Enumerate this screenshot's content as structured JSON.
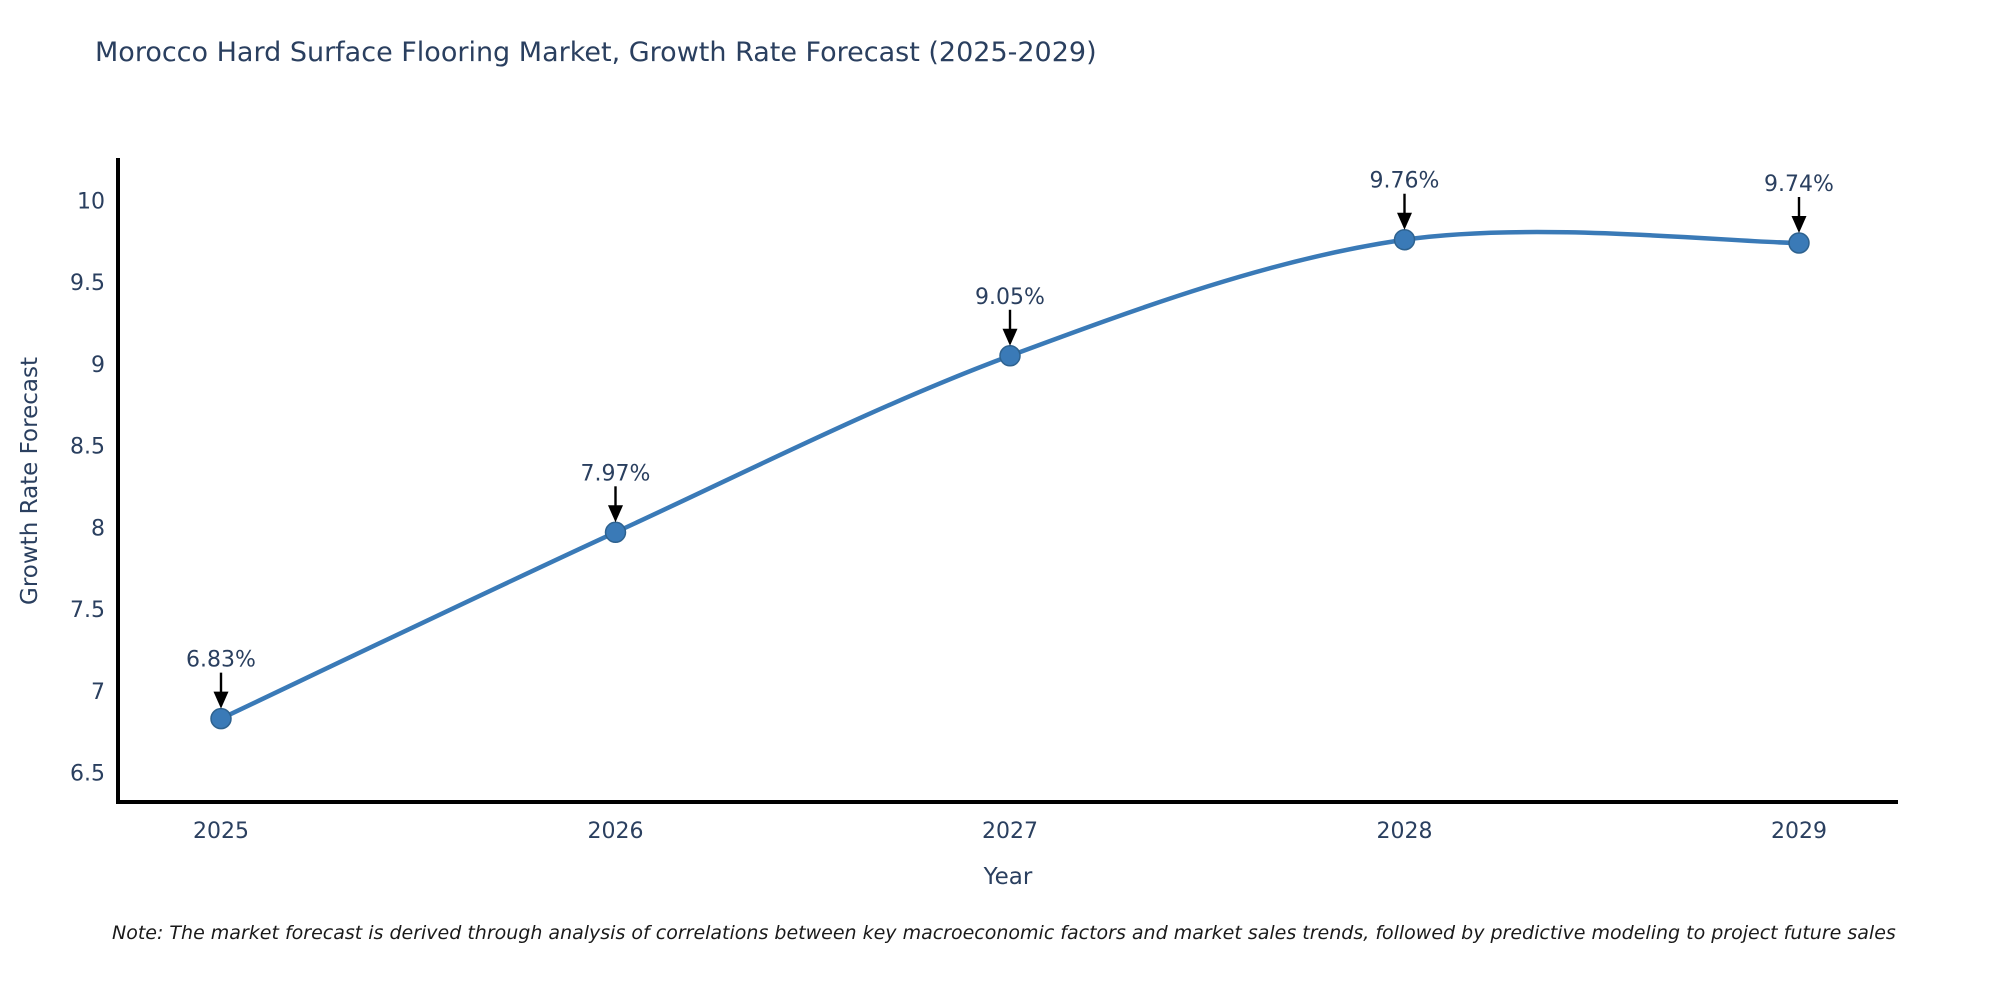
{
  "title": "Morocco Hard Surface Flooring Market, Growth Rate Forecast (2025-2029)",
  "note": "Note: The market forecast is derived through analysis of correlations between key macroeconomic factors and market sales trends, followed by predictive modeling to project future sales",
  "chart_data": {
    "type": "line",
    "title": "Morocco Hard Surface Flooring Market, Growth Rate Forecast (2025-2029)",
    "xlabel": "Year",
    "ylabel": "Growth Rate Forecast",
    "x": [
      2025,
      2026,
      2027,
      2028,
      2029
    ],
    "values": [
      6.83,
      7.97,
      9.05,
      9.76,
      9.74
    ],
    "point_labels": [
      "6.83%",
      "7.97%",
      "9.05%",
      "9.76%",
      "9.74%"
    ],
    "xticks": [
      "2025",
      "2026",
      "2027",
      "2028",
      "2029"
    ],
    "yticks": [
      "6.5",
      "7",
      "7.5",
      "8",
      "8.5",
      "9",
      "9.5",
      "10"
    ],
    "ylim": [
      6.32,
      10.26
    ],
    "line_shape": "spline",
    "grid": false,
    "legend": "none",
    "line_color": "#3a7ab7",
    "marker_color": "#3a7ab7",
    "marker_edge_color": "#2e628f",
    "axis_color": "#000000",
    "arrow_color": "#000000",
    "text_color": "#2a3f5f"
  }
}
